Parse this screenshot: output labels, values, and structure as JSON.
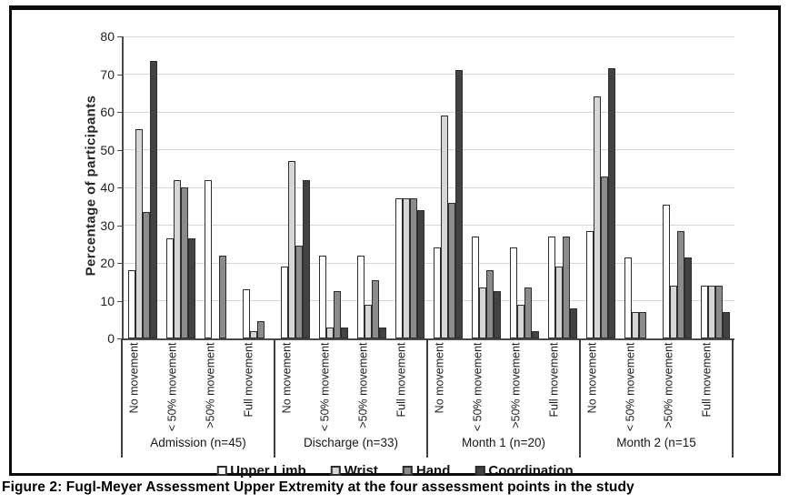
{
  "figure": {
    "caption": "Figure 2: Fugl-Meyer Assessment Upper Extremity at the four assessment points in the study"
  },
  "chart_data": {
    "type": "bar",
    "title": "",
    "xlabel": "",
    "ylabel": "Percentage of participants",
    "ylim": [
      0,
      80
    ],
    "yticks": [
      0,
      10,
      20,
      30,
      40,
      50,
      60,
      70,
      80
    ],
    "grid": true,
    "legend_position": "bottom",
    "categories": [
      "No movement",
      "< 50% movement",
      ">50% movement",
      "Full movement"
    ],
    "groups": [
      {
        "label": "Admission (n=45)"
      },
      {
        "label": "Discharge (n=33)"
      },
      {
        "label": "Month 1 (n=20)"
      },
      {
        "label": "Month 2 (n=15"
      }
    ],
    "series": [
      {
        "name": "Upper Limb",
        "color": "#ffffff",
        "values": [
          [
            18,
            26.5,
            42,
            13
          ],
          [
            19,
            22,
            22,
            37
          ],
          [
            24,
            27,
            24,
            27
          ],
          [
            28.5,
            21.5,
            35.5,
            14
          ]
        ]
      },
      {
        "name": "Wrist",
        "color": "#d6d6d4",
        "values": [
          [
            55.5,
            42,
            0,
            2
          ],
          [
            47,
            3,
            9,
            37
          ],
          [
            59,
            13.5,
            9,
            19
          ],
          [
            64,
            7,
            14,
            14
          ]
        ]
      },
      {
        "name": "Hand",
        "color": "#8b8b8b",
        "values": [
          [
            33.5,
            40,
            22,
            4.5
          ],
          [
            24.5,
            12.5,
            15.5,
            37
          ],
          [
            36,
            18,
            13.5,
            27
          ],
          [
            43,
            7,
            28.5,
            14
          ]
        ]
      },
      {
        "name": "Coordination",
        "color": "#424242",
        "values": [
          [
            73.5,
            26.5,
            0,
            0
          ],
          [
            42,
            3,
            3,
            34
          ],
          [
            71,
            12.5,
            2,
            8
          ],
          [
            71.5,
            0,
            21.5,
            7
          ]
        ]
      }
    ]
  }
}
